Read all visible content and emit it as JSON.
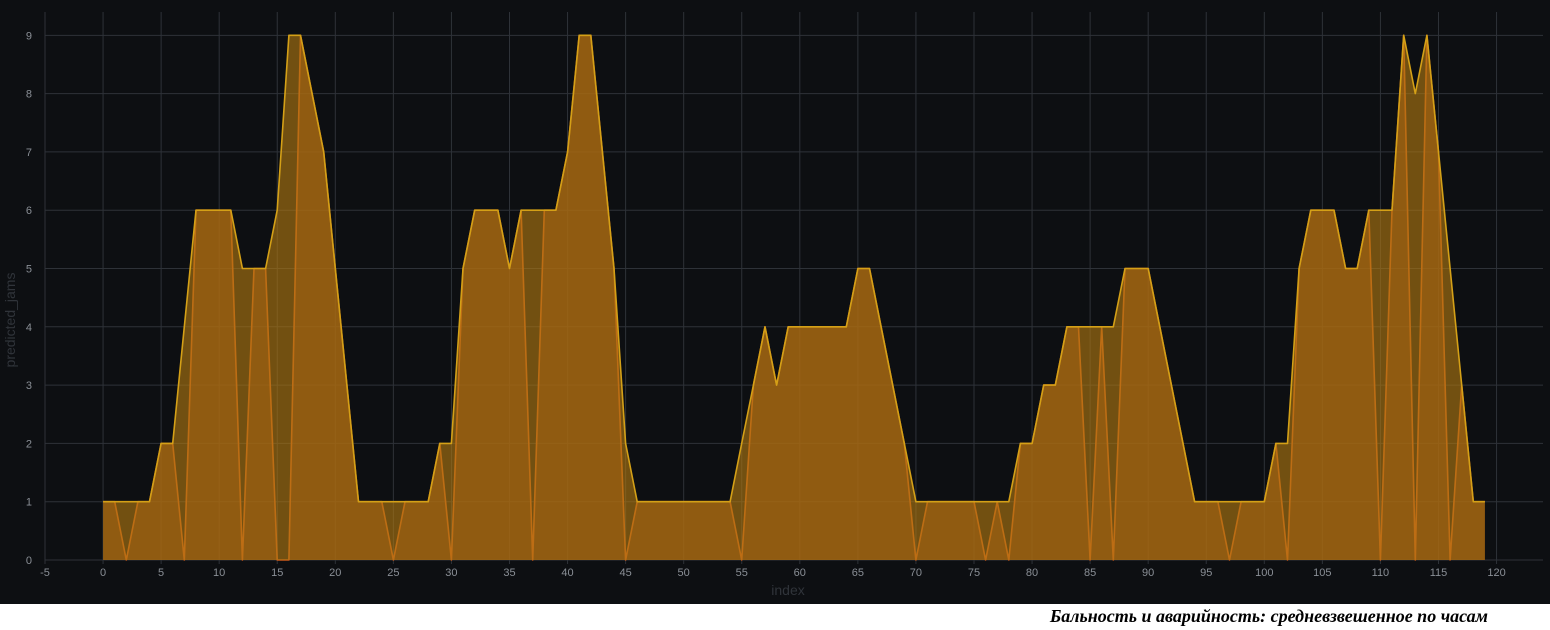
{
  "caption": "Бальность и аварийность: средневзвешенное по часам",
  "chart_data": {
    "type": "area",
    "xlabel": "index",
    "ylabel": "predicted_jams",
    "xlim": [
      -5,
      124
    ],
    "ylim": [
      0,
      9.4
    ],
    "xticks": [
      -5,
      0,
      5,
      10,
      15,
      20,
      25,
      30,
      35,
      40,
      45,
      50,
      55,
      60,
      65,
      70,
      75,
      80,
      85,
      90,
      95,
      100,
      105,
      110,
      115,
      120
    ],
    "yticks": [
      0,
      1,
      2,
      3,
      4,
      5,
      6,
      7,
      8,
      9
    ],
    "grid": true,
    "background_color": "#0d0f12",
    "grid_color": "#2e3238",
    "series": [
      {
        "color": "#d4a017",
        "fill": "#b57c10",
        "x": [
          0,
          1,
          2,
          3,
          4,
          5,
          6,
          7,
          8,
          9,
          10,
          11,
          12,
          13,
          14,
          15,
          16,
          17,
          18,
          19,
          20,
          21,
          22,
          23,
          24,
          25,
          26,
          27,
          28,
          29,
          30,
          31,
          32,
          33,
          34,
          35,
          36,
          37,
          38,
          39,
          40,
          41,
          42,
          43,
          44,
          45,
          46,
          47,
          48,
          49,
          50,
          51,
          52,
          53,
          54,
          55,
          56,
          57,
          58,
          59,
          60,
          61,
          62,
          63,
          64,
          65,
          66,
          67,
          68,
          69,
          70,
          71,
          72,
          73,
          74,
          75,
          76,
          77,
          78,
          79,
          80,
          81,
          82,
          83,
          84,
          85,
          86,
          87,
          88,
          89,
          90,
          91,
          92,
          93,
          94,
          95,
          96,
          97,
          98,
          99,
          100,
          101,
          102,
          103,
          104,
          105,
          106,
          107,
          108,
          109,
          110,
          111,
          112,
          113,
          114,
          115,
          116,
          117,
          118,
          119
        ],
        "y": [
          1,
          1,
          1,
          1,
          1,
          2,
          2,
          4,
          6,
          6,
          6,
          6,
          5,
          5,
          5,
          6,
          9,
          9,
          8,
          7,
          5,
          3,
          1,
          1,
          1,
          1,
          1,
          1,
          1,
          2,
          2,
          5,
          6,
          6,
          6,
          5,
          6,
          6,
          6,
          6,
          7,
          9,
          9,
          7,
          5,
          2,
          1,
          1,
          1,
          1,
          1,
          1,
          1,
          1,
          1,
          2,
          3,
          4,
          3,
          4,
          4,
          4,
          4,
          4,
          4,
          5,
          5,
          4,
          3,
          2,
          1,
          1,
          1,
          1,
          1,
          1,
          1,
          1,
          1,
          2,
          2,
          3,
          3,
          4,
          4,
          4,
          4,
          4,
          5,
          5,
          5,
          4,
          3,
          2,
          1,
          1,
          1,
          1,
          1,
          1,
          1,
          2,
          2,
          5,
          6,
          6,
          6,
          5,
          5,
          6,
          6,
          6,
          9,
          8,
          9,
          7,
          5,
          3,
          1,
          1
        ]
      },
      {
        "color": "#c8591a",
        "fill": "#8a3f14",
        "x": [
          0,
          1,
          2,
          3,
          4,
          5,
          6,
          7,
          8,
          9,
          10,
          11,
          12,
          13,
          14,
          15,
          16,
          17,
          18,
          19,
          20,
          21,
          22,
          23,
          24,
          25,
          26,
          27,
          28,
          29,
          30,
          31,
          32,
          33,
          34,
          35,
          36,
          37,
          38,
          39,
          40,
          41,
          42,
          43,
          44,
          45,
          46,
          47,
          48,
          49,
          50,
          51,
          52,
          53,
          54,
          55,
          56,
          57,
          58,
          59,
          60,
          61,
          62,
          63,
          64,
          65,
          66,
          67,
          68,
          69,
          70,
          71,
          72,
          73,
          74,
          75,
          76,
          77,
          78,
          79,
          80,
          81,
          82,
          83,
          84,
          85,
          86,
          87,
          88,
          89,
          90,
          91,
          92,
          93,
          94,
          95,
          96,
          97,
          98,
          99,
          100,
          101,
          102,
          103,
          104,
          105,
          106,
          107,
          108,
          109,
          110,
          111,
          112,
          113,
          114,
          115,
          116,
          117,
          118,
          119
        ],
        "y": [
          1,
          1,
          0,
          1,
          1,
          2,
          2,
          0,
          6,
          6,
          6,
          6,
          0,
          5,
          5,
          0,
          0,
          9,
          8,
          7,
          5,
          3,
          1,
          1,
          1,
          0,
          1,
          1,
          1,
          2,
          0,
          5,
          6,
          6,
          6,
          5,
          6,
          0,
          6,
          6,
          7,
          9,
          9,
          7,
          5,
          0,
          1,
          1,
          1,
          1,
          1,
          1,
          1,
          1,
          1,
          0,
          3,
          4,
          3,
          4,
          4,
          4,
          4,
          4,
          4,
          5,
          5,
          4,
          3,
          2,
          0,
          1,
          1,
          1,
          1,
          1,
          0,
          1,
          0,
          2,
          2,
          3,
          3,
          4,
          4,
          0,
          4,
          0,
          5,
          5,
          5,
          4,
          3,
          2,
          1,
          1,
          1,
          0,
          1,
          1,
          1,
          2,
          0,
          5,
          6,
          6,
          6,
          5,
          5,
          6,
          0,
          6,
          9,
          0,
          9,
          7,
          0,
          3,
          1,
          1
        ]
      }
    ]
  }
}
